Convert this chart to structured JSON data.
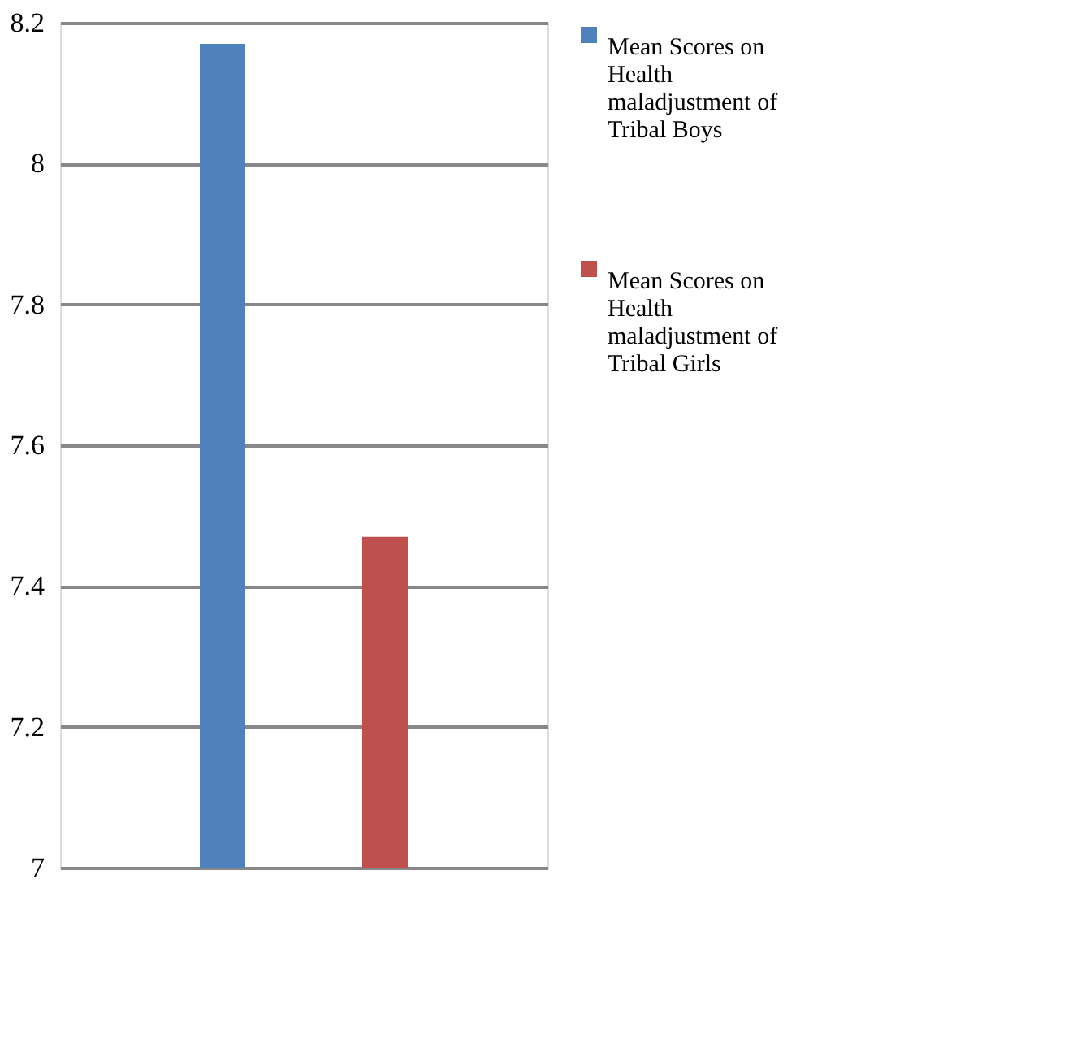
{
  "chart_data": {
    "type": "bar",
    "categories": [
      null
    ],
    "series": [
      {
        "name": "Mean Scores on Health maladjustment of Tribal Boys",
        "color": "#4f81bd",
        "values": [
          8.17
        ]
      },
      {
        "name": "Mean Scores on Health maladjustment of Tribal Girls",
        "color": "#c0504d",
        "values": [
          7.47
        ]
      }
    ],
    "ylim": [
      7,
      8.2
    ],
    "yticks": [
      7,
      7.2,
      7.4,
      7.6,
      7.8,
      8,
      8.2
    ],
    "grid": "y",
    "legend": "right",
    "tick_labels": "y"
  }
}
